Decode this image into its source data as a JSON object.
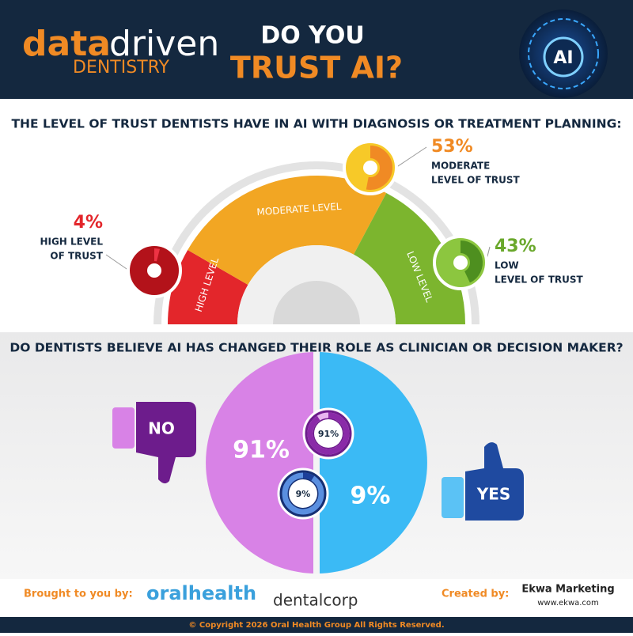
{
  "header": {
    "logo_a": "data",
    "logo_b": "driven",
    "logo_c": "DENTISTRY",
    "title_1": "DO YOU",
    "title_2": "TRUST AI?",
    "badge": "AI"
  },
  "trust": {
    "heading": "THE LEVEL OF TRUST DENTISTS HAVE IN AI WITH DIAGNOSIS OR TREATMENT PLANNING:",
    "segments": [
      "HIGH LEVEL",
      "MODERATE LEVEL",
      "LOW LEVEL"
    ],
    "items": [
      {
        "value": 4,
        "label": "4%",
        "lines": [
          "HIGH LEVEL",
          "OF TRUST"
        ]
      },
      {
        "value": 53,
        "label": "53%",
        "lines": [
          "MODERATE",
          "LEVEL OF TRUST"
        ]
      },
      {
        "value": 43,
        "label": "43%",
        "lines": [
          "LOW",
          "LEVEL OF TRUST"
        ]
      }
    ]
  },
  "role": {
    "heading": "DO DENTISTS BELIEVE AI HAS CHANGED THEIR ROLE AS CLINICIAN OR DECISION MAKER?",
    "no": "NO",
    "yes": "YES",
    "items": [
      {
        "value": 91,
        "label": "91%"
      },
      {
        "value": 9,
        "label": "9%"
      }
    ]
  },
  "footer": {
    "brought": "Brought to you by:",
    "sponsor_1": "oralhealth",
    "sponsor_2": "dentalcorp",
    "created": "Created by:",
    "creator": "Ekwa Marketing",
    "url": "www.ekwa.com",
    "copyright": "© Copyright 2026 Oral Health Group All Rights Reserved."
  }
}
